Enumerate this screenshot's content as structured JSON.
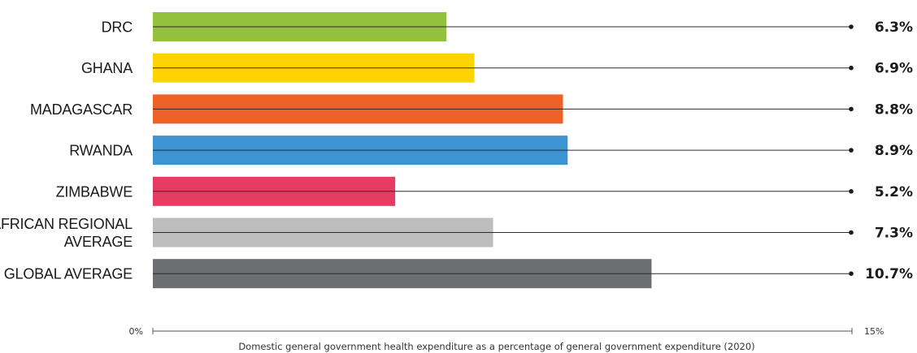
{
  "chart_data": {
    "type": "bar",
    "orientation": "horizontal",
    "categories": [
      "DRC",
      "GHANA",
      "MADAGASCAR",
      "RWANDA",
      "ZIMBABWE",
      "AFRICAN REGIONAL AVERAGE",
      "GLOBAL AVERAGE"
    ],
    "category_lines": [
      [
        "DRC"
      ],
      [
        "GHANA"
      ],
      [
        "MADAGASCAR"
      ],
      [
        "RWANDA"
      ],
      [
        "ZIMBABWE"
      ],
      [
        "AFRICAN REGIONAL",
        "AVERAGE"
      ],
      [
        "GLOBAL AVERAGE"
      ]
    ],
    "values": [
      6.3,
      6.9,
      8.8,
      8.9,
      5.2,
      7.3,
      10.7
    ],
    "value_labels": [
      "6.3%",
      "6.9%",
      "8.8%",
      "8.9%",
      "5.2%",
      "7.3%",
      "10.7%"
    ],
    "colors": [
      "#93c13e",
      "#fed400",
      "#ee6227",
      "#3c94d2",
      "#e63c64",
      "#bdbdbd",
      "#6d6e71"
    ],
    "xlim": [
      0,
      15
    ],
    "x_tick_labels": [
      "0%",
      "15%"
    ],
    "xlabel": "Domestic general government health expenditure as a percentage of general government expenditure (2020)",
    "title": "",
    "ylabel": "",
    "grid": false,
    "legend": "none"
  }
}
